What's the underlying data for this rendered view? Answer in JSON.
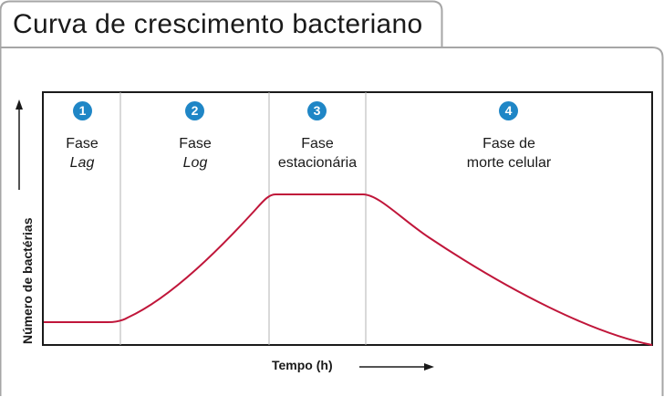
{
  "title": "Curva de crescimento bacteriano",
  "y_axis_label": "Número de bactérias",
  "x_axis_label": "Tempo (h)",
  "curve_color": "#c0163a",
  "badge_color": "#1f86c6",
  "phases": [
    {
      "number": "1",
      "line1": "Fase",
      "line2": "Lag"
    },
    {
      "number": "2",
      "line1": "Fase",
      "line2": "Log"
    },
    {
      "number": "3",
      "line1": "Fase",
      "line2": "estacionária"
    },
    {
      "number": "4",
      "line1": "Fase de",
      "line2": "morte celular"
    }
  ]
}
